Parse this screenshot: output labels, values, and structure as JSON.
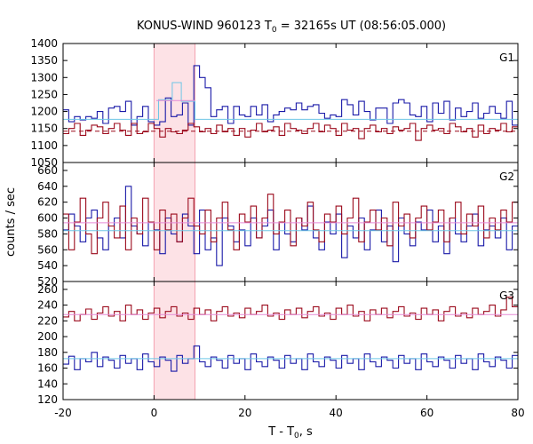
{
  "chart_data": {
    "type": "line",
    "title": "KONUS-WIND 960123 T",
    "title_sub": "0",
    "title_rest": " = 32165s UT (08:56:05.000)",
    "xlabel": "T - T",
    "xlabel_sub": "0",
    "xlabel_rest": ", s",
    "ylabel": "counts / sec",
    "xlim": [
      -20,
      80
    ],
    "xticks": [
      -20,
      0,
      20,
      40,
      60,
      80
    ],
    "xtick_labels": [
      "-20",
      "0",
      "20",
      "40",
      "60",
      "80"
    ],
    "highlight_interval": [
      0,
      9
    ],
    "colors": {
      "blue": "#1a1aa8",
      "red": "#9b0a1c",
      "cyan": "#6ec6e6",
      "pink": "#e58ad6",
      "highlight": "#fde2e6",
      "frame": "#000000"
    },
    "panels": [
      {
        "label": "G1",
        "ylim": [
          1050,
          1400
        ],
        "yticks": [
          1050,
          1100,
          1150,
          1200,
          1250,
          1300,
          1350,
          1400
        ],
        "ytick_labels": [
          "1050",
          "1100",
          "1150",
          "1200",
          "1250",
          "1300",
          "1350",
          "1400"
        ],
        "series": [
          {
            "color": "blue",
            "bin": 1.25,
            "start": -20,
            "values": [
              1205,
              1170,
              1185,
              1175,
              1185,
              1180,
              1200,
              1165,
              1210,
              1215,
              1200,
              1230,
              1160,
              1185,
              1215,
              1170,
              1160,
              1170,
              1240,
              1185,
              1190,
              1225,
              1160,
              1335,
              1300,
              1270,
              1185,
              1205,
              1215,
              1165,
              1215,
              1190,
              1185,
              1215,
              1190,
              1220,
              1170,
              1190,
              1200,
              1210,
              1205,
              1225,
              1205,
              1215,
              1220,
              1195,
              1180,
              1190,
              1185,
              1235,
              1220,
              1190,
              1230,
              1200,
              1175,
              1210,
              1210,
              1165,
              1225,
              1235,
              1225,
              1190,
              1185,
              1215,
              1170,
              1225,
              1195,
              1230,
              1175,
              1210,
              1185,
              1200,
              1225,
              1180,
              1195,
              1215,
              1195,
              1180,
              1230,
              1160
            ]
          },
          {
            "color": "red",
            "bin": 1.25,
            "start": -20,
            "values": [
              1135,
              1150,
              1165,
              1130,
              1145,
              1160,
              1155,
              1135,
              1150,
              1165,
              1145,
              1130,
              1165,
              1135,
              1140,
              1165,
              1150,
              1125,
              1150,
              1140,
              1135,
              1145,
              1165,
              1155,
              1140,
              1150,
              1135,
              1160,
              1140,
              1150,
              1130,
              1150,
              1125,
              1145,
              1165,
              1140,
              1145,
              1155,
              1130,
              1165,
              1150,
              1145,
              1135,
              1150,
              1165,
              1140,
              1160,
              1150,
              1130,
              1165,
              1145,
              1150,
              1120,
              1150,
              1160,
              1140,
              1150,
              1135,
              1155,
              1145,
              1150,
              1165,
              1115,
              1150,
              1160,
              1145,
              1150,
              1135,
              1165,
              1155,
              1140,
              1150,
              1125,
              1160,
              1135,
              1150,
              1145,
              1165,
              1140,
              1155
            ]
          },
          {
            "color": "cyan",
            "type": "step",
            "points": [
              [
                -20,
                1177
              ],
              [
                1,
                1177
              ],
              [
                1,
                1235
              ],
              [
                4,
                1235
              ],
              [
                4,
                1285
              ],
              [
                6,
                1285
              ],
              [
                6,
                1230
              ],
              [
                9,
                1230
              ],
              [
                9,
                1177
              ],
              [
                80,
                1177
              ]
            ]
          },
          {
            "color": "pink",
            "type": "step",
            "points": [
              [
                0.5,
                1232
              ],
              [
                9,
                1232
              ]
            ]
          },
          {
            "color": "red",
            "type": "dashed",
            "points": [
              [
                -20,
                1142
              ],
              [
                80,
                1142
              ]
            ]
          }
        ]
      },
      {
        "label": "G2",
        "ylim": [
          520,
          670
        ],
        "yticks": [
          520,
          540,
          560,
          580,
          600,
          620,
          640,
          660
        ],
        "ytick_labels": [
          "520",
          "540",
          "560",
          "580",
          "600",
          "620",
          "640",
          "660"
        ],
        "series": [
          {
            "color": "blue",
            "bin": 1.25,
            "start": -20,
            "values": [
              585,
              605,
              590,
              570,
              600,
              610,
              575,
              560,
              590,
              600,
              575,
              640,
              590,
              580,
              565,
              595,
              585,
              555,
              600,
              580,
              570,
              605,
              590,
              555,
              610,
              560,
              575,
              540,
              600,
              590,
              570,
              585,
              565,
              600,
              575,
              590,
              610,
              560,
              595,
              580,
              570,
              600,
              585,
              615,
              575,
              560,
              595,
              580,
              605,
              550,
              590,
              575,
              600,
              560,
              585,
              610,
              570,
              590,
              545,
              600,
              580,
              565,
              595,
              585,
              610,
              570,
              590,
              555,
              600,
              580,
              570,
              590,
              605,
              565,
              585,
              590,
              575,
              600,
              560,
              590
            ]
          },
          {
            "color": "red",
            "bin": 1.25,
            "start": -20,
            "values": [
              605,
              560,
              595,
              625,
              580,
              555,
              600,
              620,
              590,
              575,
              615,
              560,
              600,
              580,
              625,
              595,
              560,
              610,
              585,
              605,
              570,
              600,
              625,
              590,
              580,
              610,
              570,
              600,
              620,
              585,
              560,
              605,
              595,
              615,
              575,
              600,
              630,
              580,
              595,
              610,
              565,
              600,
              590,
              620,
              585,
              570,
              605,
              595,
              615,
              580,
              600,
              625,
              570,
              595,
              610,
              585,
              600,
              565,
              620,
              590,
              605,
              575,
              600,
              615,
              585,
              595,
              610,
              570,
              600,
              620,
              580,
              605,
              590,
              615,
              575,
              600,
              585,
              610,
              595,
              620
            ]
          },
          {
            "color": "pink",
            "type": "step",
            "points": [
              [
                -20,
                594
              ],
              [
                80,
                594
              ]
            ]
          },
          {
            "color": "cyan",
            "type": "step",
            "points": [
              [
                -20,
                584
              ],
              [
                80,
                584
              ]
            ]
          }
        ]
      },
      {
        "label": "G3",
        "ylim": [
          120,
          270
        ],
        "yticks": [
          120,
          140,
          160,
          180,
          200,
          220,
          240,
          260
        ],
        "ytick_labels": [
          "120",
          "140",
          "160",
          "180",
          "200",
          "220",
          "240",
          "260"
        ],
        "series": [
          {
            "color": "red",
            "bin": 1.25,
            "start": -20,
            "values": [
              225,
              232,
              220,
              228,
              235,
              222,
              230,
              238,
              226,
              232,
              220,
              240,
              228,
              234,
              222,
              230,
              236,
              224,
              232,
              238,
              226,
              230,
              222,
              236,
              228,
              234,
              220,
              232,
              238,
              226,
              230,
              224,
              236,
              228,
              232,
              240,
              226,
              230,
              222,
              234,
              228,
              236,
              224,
              232,
              238,
              226,
              230,
              222,
              236,
              228,
              240,
              226,
              232,
              220,
              234,
              228,
              236,
              224,
              232,
              238,
              226,
              230,
              222,
              236,
              228,
              234,
              220,
              232,
              238,
              226,
              230,
              224,
              236,
              228,
              232,
              240,
              226,
              234,
              250,
              238
            ]
          },
          {
            "color": "blue",
            "bin": 1.25,
            "start": -20,
            "values": [
              165,
              175,
              158,
              172,
              168,
              180,
              162,
              174,
              170,
              160,
              176,
              166,
              172,
              158,
              178,
              168,
              162,
              174,
              170,
              156,
              176,
              166,
              172,
              188,
              168,
              162,
              174,
              170,
              160,
              176,
              166,
              172,
              158,
              178,
              168,
              162,
              174,
              170,
              160,
              176,
              166,
              172,
              158,
              178,
              168,
              162,
              174,
              170,
              160,
              176,
              166,
              172,
              158,
              178,
              168,
              162,
              174,
              170,
              160,
              176,
              166,
              172,
              158,
              178,
              168,
              162,
              174,
              170,
              160,
              176,
              166,
              172,
              158,
              178,
              168,
              162,
              174,
              170,
              160,
              176
            ]
          },
          {
            "color": "pink",
            "type": "step",
            "points": [
              [
                -20,
                228
              ],
              [
                80,
                228
              ]
            ]
          },
          {
            "color": "cyan",
            "type": "step",
            "points": [
              [
                -20,
                172
              ],
              [
                80,
                172
              ]
            ]
          }
        ]
      }
    ]
  }
}
